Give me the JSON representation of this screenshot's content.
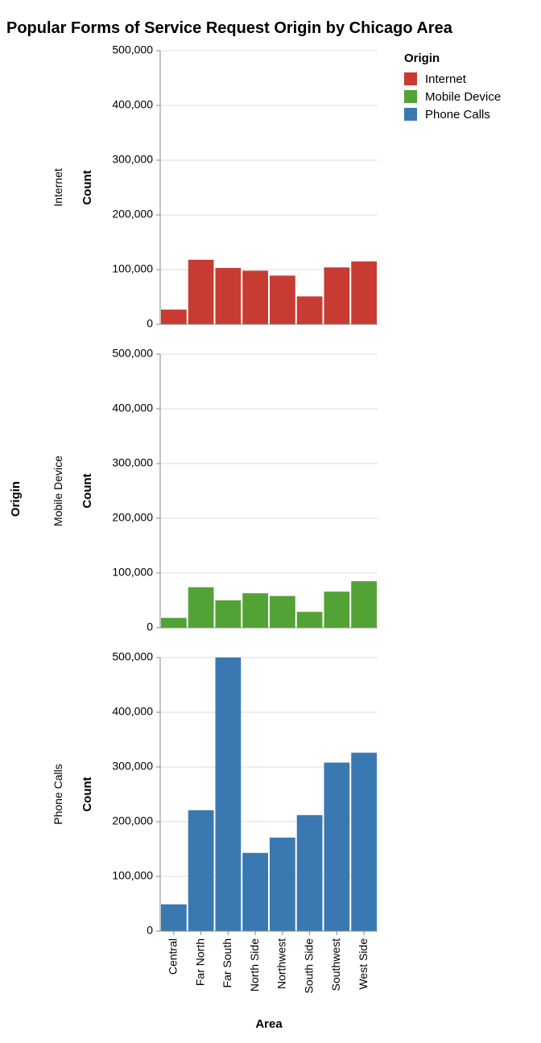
{
  "chart_data": {
    "type": "bar",
    "title": "Popular Forms of Service Request Origin by Chicago Area",
    "xlabel": "Area",
    "ylabel": "Count",
    "row_title": "Origin",
    "categories": [
      "Central",
      "Far North",
      "Far South",
      "North Side",
      "Northwest",
      "South Side",
      "Southwest",
      "West Side"
    ],
    "ylim": [
      0,
      500000
    ],
    "yticks": [
      0,
      100000,
      200000,
      300000,
      400000,
      500000
    ],
    "ytick_labels": [
      "0",
      "100,000",
      "200,000",
      "300,000",
      "400,000",
      "500,000"
    ],
    "grid": true,
    "legend": {
      "title": "Origin",
      "position": "top-right"
    },
    "series": [
      {
        "name": "Internet",
        "color": "#c73b33",
        "values": [
          27000,
          118000,
          103000,
          98000,
          89000,
          51000,
          104000,
          115000
        ]
      },
      {
        "name": "Mobile Device",
        "color": "#52a235",
        "values": [
          18000,
          74000,
          50000,
          63000,
          58000,
          29000,
          66000,
          85000
        ]
      },
      {
        "name": "Phone Calls",
        "color": "#3a78b1",
        "values": [
          49000,
          221000,
          500000,
          143000,
          171000,
          212000,
          308000,
          326000
        ]
      }
    ]
  }
}
